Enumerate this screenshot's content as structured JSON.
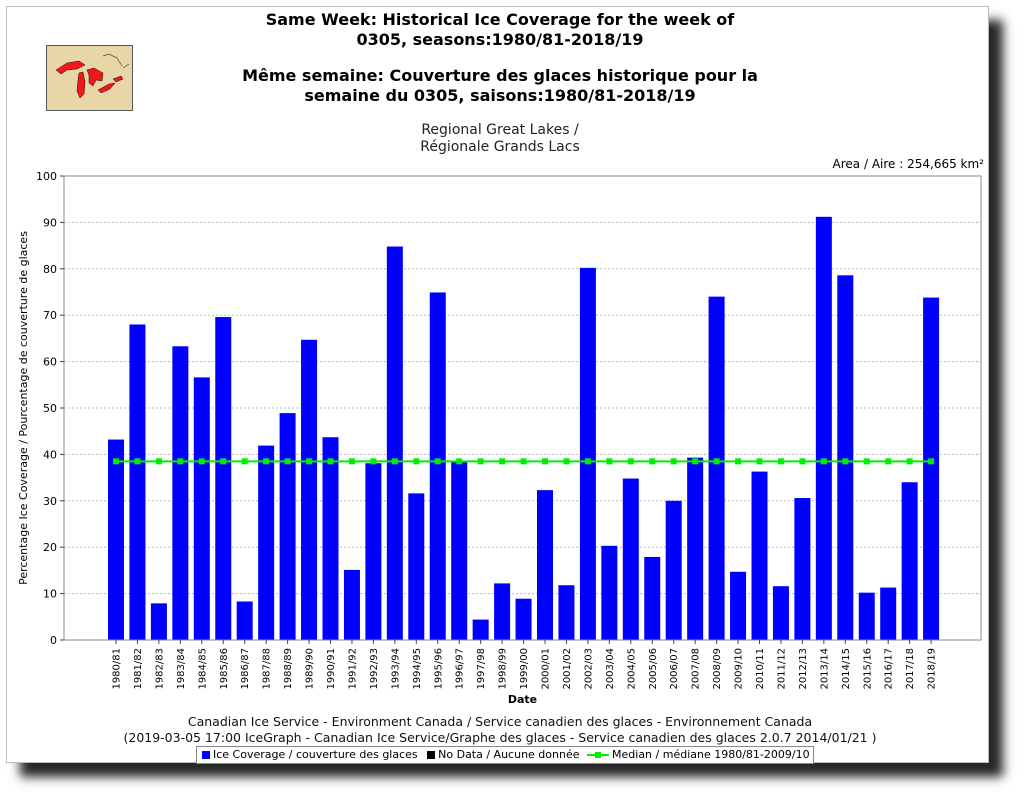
{
  "title_lines": [
    "Same Week: Historical Ice Coverage for the week of",
    "0305, seasons:1980/81-2018/19",
    "Même semaine: Couverture des glaces historique pour la",
    "semaine du 0305, saisons:1980/81-2018/19"
  ],
  "subtitle_lines": [
    "Regional Great Lakes /",
    "Régionale Grands Lacs"
  ],
  "area_label": "Area / Aire : 254,665 km²",
  "footer_lines": [
    "Canadian Ice Service - Environment Canada / Service canadien des glaces - Environnement Canada",
    "(2019-03-05 17:00 IceGraph - Canadian Ice Service/Graphe des glaces - Service canadien des glaces 2.0.7 2014/01/21 )"
  ],
  "legend": {
    "ice": "Ice Coverage / couverture des glaces",
    "nodata": "No Data / Aucune donnée",
    "median": "Median / médiane 1980/81-2009/10"
  },
  "colors": {
    "bar": "#0000ff",
    "median": "#00ee00",
    "nodata": "#000000",
    "grid": "#b8b8b8"
  },
  "chart_data": {
    "type": "bar",
    "xlabel": "Date",
    "ylabel": "Percentage Ice Coverage / Pourcentage de couverture de glaces",
    "ylim": [
      0,
      100
    ],
    "yticks": [
      0,
      10,
      20,
      30,
      40,
      50,
      60,
      70,
      80,
      90,
      100
    ],
    "grid": true,
    "legend_position": "bottom",
    "categories": [
      "1980/81",
      "1981/82",
      "1982/83",
      "1983/84",
      "1984/85",
      "1985/86",
      "1986/87",
      "1987/88",
      "1988/89",
      "1989/90",
      "1990/91",
      "1991/92",
      "1992/93",
      "1993/94",
      "1994/95",
      "1995/96",
      "1996/97",
      "1997/98",
      "1998/99",
      "1999/00",
      "2000/01",
      "2001/02",
      "2002/03",
      "2003/04",
      "2004/05",
      "2005/06",
      "2006/07",
      "2007/08",
      "2008/09",
      "2009/10",
      "2010/11",
      "2011/12",
      "2012/13",
      "2013/14",
      "2014/15",
      "2015/16",
      "2016/17",
      "2017/18",
      "2018/19"
    ],
    "series": [
      {
        "name": "Ice Coverage / couverture des glaces",
        "values": [
          43.2,
          68.0,
          7.9,
          63.3,
          56.6,
          69.6,
          8.3,
          41.9,
          48.9,
          64.7,
          43.7,
          15.1,
          38.1,
          84.8,
          31.6,
          74.9,
          38.5,
          4.4,
          12.2,
          8.9,
          32.3,
          11.8,
          80.2,
          20.3,
          34.8,
          17.9,
          30.0,
          39.3,
          74.0,
          14.7,
          36.3,
          11.6,
          30.6,
          91.2,
          78.6,
          10.2,
          11.3,
          34.0,
          73.8
        ]
      }
    ],
    "median": 38.5
  }
}
